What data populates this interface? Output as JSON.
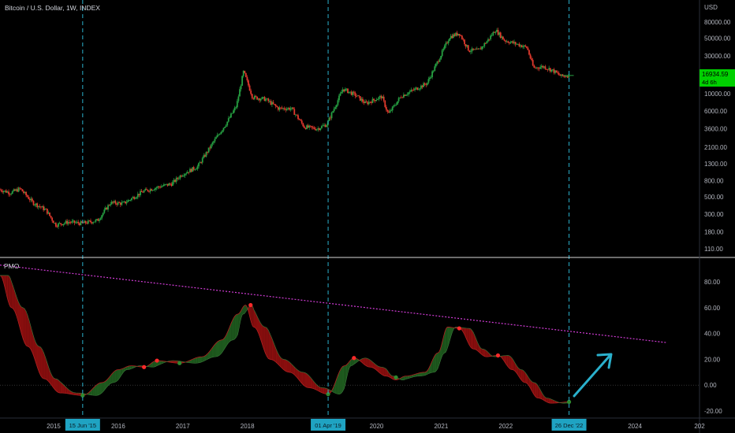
{
  "header": {
    "title": "Bitcoin / U.S. Dollar, 1W, INDEX"
  },
  "indicator": {
    "name": "PMO"
  },
  "price_badge": {
    "price": "16934.59",
    "countdown": "4d 6h",
    "color": "#00d000"
  },
  "colors": {
    "background": "#000000",
    "up_candle": "#26a042",
    "down_candle": "#e0392d",
    "marker_line": "#2ab0cc",
    "trendline": "#d23cd6",
    "pmo_fill_bull": "#1e5a1e",
    "pmo_fill_bear": "#8a0e0e",
    "arrow": "#2ab0cc"
  },
  "price_axis": {
    "unit": "USD",
    "ticks": [
      {
        "v": 80000,
        "label": "80000.00"
      },
      {
        "v": 50000,
        "label": "50000.00"
      },
      {
        "v": 30000,
        "label": "30000.00"
      },
      {
        "v": 10000,
        "label": "10000.00"
      },
      {
        "v": 6000,
        "label": "6000.00"
      },
      {
        "v": 3600,
        "label": "3600.00"
      },
      {
        "v": 2100,
        "label": "2100.00"
      },
      {
        "v": 1300,
        "label": "1300.00"
      },
      {
        "v": 800,
        "label": "800.00"
      },
      {
        "v": 500,
        "label": "500.00"
      },
      {
        "v": 300,
        "label": "300.00"
      },
      {
        "v": 180,
        "label": "180.00"
      },
      {
        "v": 110,
        "label": "110.00"
      }
    ]
  },
  "pmo_axis": {
    "ticks": [
      {
        "v": 80,
        "label": "80.00"
      },
      {
        "v": 60,
        "label": "60.00"
      },
      {
        "v": 40,
        "label": "40.00"
      },
      {
        "v": 20,
        "label": "20.00"
      },
      {
        "v": 0,
        "label": "0.00"
      },
      {
        "v": -20,
        "label": "-20.00"
      }
    ]
  },
  "time_axis": {
    "labels": [
      {
        "t": 2015.0,
        "label": "2015"
      },
      {
        "t": 2016.0,
        "label": "2016"
      },
      {
        "t": 2017.0,
        "label": "2017"
      },
      {
        "t": 2018.0,
        "label": "2018"
      },
      {
        "t": 2020.0,
        "label": "2020"
      },
      {
        "t": 2021.0,
        "label": "2021"
      },
      {
        "t": 2022.0,
        "label": "2022"
      },
      {
        "t": 2024.0,
        "label": "2024"
      },
      {
        "t": 2025.0,
        "label": "202"
      }
    ],
    "markers": [
      {
        "t": 2015.45,
        "label": "15 Jun '15"
      },
      {
        "t": 2019.25,
        "label": "01 Apr '19"
      },
      {
        "t": 2022.98,
        "label": "26 Dec '22"
      }
    ]
  },
  "chart_data": [
    {
      "type": "candlestick",
      "title": "Bitcoin / U.S. Dollar, 1W, INDEX",
      "y_scale": "log",
      "ylim": [
        95,
        110000
      ],
      "xlim": [
        2014.17,
        2025.0
      ],
      "anchors": [
        {
          "t": 2014.17,
          "p": 620
        },
        {
          "t": 2014.35,
          "p": 560
        },
        {
          "t": 2014.5,
          "p": 630
        },
        {
          "t": 2014.7,
          "p": 420
        },
        {
          "t": 2014.9,
          "p": 340
        },
        {
          "t": 2015.05,
          "p": 220
        },
        {
          "t": 2015.25,
          "p": 240
        },
        {
          "t": 2015.45,
          "p": 230
        },
        {
          "t": 2015.7,
          "p": 250
        },
        {
          "t": 2015.9,
          "p": 420
        },
        {
          "t": 2016.1,
          "p": 410
        },
        {
          "t": 2016.4,
          "p": 580
        },
        {
          "t": 2016.6,
          "p": 650
        },
        {
          "t": 2016.85,
          "p": 730
        },
        {
          "t": 2017.0,
          "p": 950
        },
        {
          "t": 2017.25,
          "p": 1200
        },
        {
          "t": 2017.5,
          "p": 2500
        },
        {
          "t": 2017.7,
          "p": 4300
        },
        {
          "t": 2017.85,
          "p": 7000
        },
        {
          "t": 2017.96,
          "p": 19000
        },
        {
          "t": 2018.1,
          "p": 9000
        },
        {
          "t": 2018.3,
          "p": 8500
        },
        {
          "t": 2018.5,
          "p": 6500
        },
        {
          "t": 2018.7,
          "p": 6500
        },
        {
          "t": 2018.9,
          "p": 3800
        },
        {
          "t": 2019.1,
          "p": 3600
        },
        {
          "t": 2019.25,
          "p": 4100
        },
        {
          "t": 2019.5,
          "p": 11500
        },
        {
          "t": 2019.7,
          "p": 9500
        },
        {
          "t": 2019.85,
          "p": 7500
        },
        {
          "t": 2020.1,
          "p": 9200
        },
        {
          "t": 2020.2,
          "p": 5500
        },
        {
          "t": 2020.4,
          "p": 9300
        },
        {
          "t": 2020.6,
          "p": 11200
        },
        {
          "t": 2020.8,
          "p": 13500
        },
        {
          "t": 2021.0,
          "p": 29000
        },
        {
          "t": 2021.15,
          "p": 52000
        },
        {
          "t": 2021.3,
          "p": 58000
        },
        {
          "t": 2021.45,
          "p": 35000
        },
        {
          "t": 2021.6,
          "p": 35000
        },
        {
          "t": 2021.75,
          "p": 48000
        },
        {
          "t": 2021.86,
          "p": 64000
        },
        {
          "t": 2022.0,
          "p": 47000
        },
        {
          "t": 2022.2,
          "p": 42000
        },
        {
          "t": 2022.35,
          "p": 38000
        },
        {
          "t": 2022.45,
          "p": 21000
        },
        {
          "t": 2022.6,
          "p": 22000
        },
        {
          "t": 2022.75,
          "p": 19500
        },
        {
          "t": 2022.88,
          "p": 16500
        },
        {
          "t": 2022.98,
          "p": 16934.59
        }
      ]
    },
    {
      "type": "area",
      "title": "PMO",
      "ylim": [
        -25,
        95
      ],
      "series": [
        {
          "points": [
            {
              "t": 2014.17,
              "v": 85
            },
            {
              "t": 2014.35,
              "v": 60
            },
            {
              "t": 2014.6,
              "v": 30
            },
            {
              "t": 2014.85,
              "v": 5
            },
            {
              "t": 2015.1,
              "v": -6
            },
            {
              "t": 2015.45,
              "v": -8
            },
            {
              "t": 2015.75,
              "v": 2
            },
            {
              "t": 2016.0,
              "v": 12
            },
            {
              "t": 2016.2,
              "v": 15
            },
            {
              "t": 2016.4,
              "v": 14
            },
            {
              "t": 2016.6,
              "v": 19
            },
            {
              "t": 2016.95,
              "v": 17
            },
            {
              "t": 2017.3,
              "v": 22
            },
            {
              "t": 2017.6,
              "v": 35
            },
            {
              "t": 2017.85,
              "v": 55
            },
            {
              "t": 2017.97,
              "v": 62
            },
            {
              "t": 2018.1,
              "v": 45
            },
            {
              "t": 2018.35,
              "v": 20
            },
            {
              "t": 2018.65,
              "v": 10
            },
            {
              "t": 2018.95,
              "v": -2
            },
            {
              "t": 2019.25,
              "v": -7
            },
            {
              "t": 2019.5,
              "v": 15
            },
            {
              "t": 2019.65,
              "v": 21
            },
            {
              "t": 2019.9,
              "v": 14
            },
            {
              "t": 2020.15,
              "v": 7
            },
            {
              "t": 2020.3,
              "v": 4
            },
            {
              "t": 2020.45,
              "v": 7
            },
            {
              "t": 2020.75,
              "v": 10
            },
            {
              "t": 2020.95,
              "v": 25
            },
            {
              "t": 2021.1,
              "v": 45
            },
            {
              "t": 2021.28,
              "v": 44
            },
            {
              "t": 2021.5,
              "v": 28
            },
            {
              "t": 2021.7,
              "v": 22
            },
            {
              "t": 2021.88,
              "v": 23
            },
            {
              "t": 2022.1,
              "v": 12
            },
            {
              "t": 2022.3,
              "v": 2
            },
            {
              "t": 2022.5,
              "v": -10
            },
            {
              "t": 2022.7,
              "v": -14
            },
            {
              "t": 2022.98,
              "v": -13
            }
          ],
          "signal_crosses": [
            {
              "t": 2015.45,
              "v": -8,
              "kind": "bull"
            },
            {
              "t": 2016.4,
              "v": 14,
              "kind": "bear"
            },
            {
              "t": 2016.6,
              "v": 19,
              "kind": "bear"
            },
            {
              "t": 2016.95,
              "v": 17,
              "kind": "bull"
            },
            {
              "t": 2018.05,
              "v": 62,
              "kind": "bear"
            },
            {
              "t": 2019.25,
              "v": -7,
              "kind": "bull"
            },
            {
              "t": 2019.65,
              "v": 21,
              "kind": "bear"
            },
            {
              "t": 2020.3,
              "v": 6,
              "kind": "bull"
            },
            {
              "t": 2021.28,
              "v": 44,
              "kind": "bear"
            },
            {
              "t": 2021.88,
              "v": 23,
              "kind": "bear"
            },
            {
              "t": 2022.98,
              "v": -13,
              "kind": "bull"
            }
          ]
        }
      ],
      "trendline": [
        {
          "t": 2014.17,
          "v": 93
        },
        {
          "t": 2024.48,
          "v": 33
        }
      ],
      "zero_line": 0
    }
  ]
}
